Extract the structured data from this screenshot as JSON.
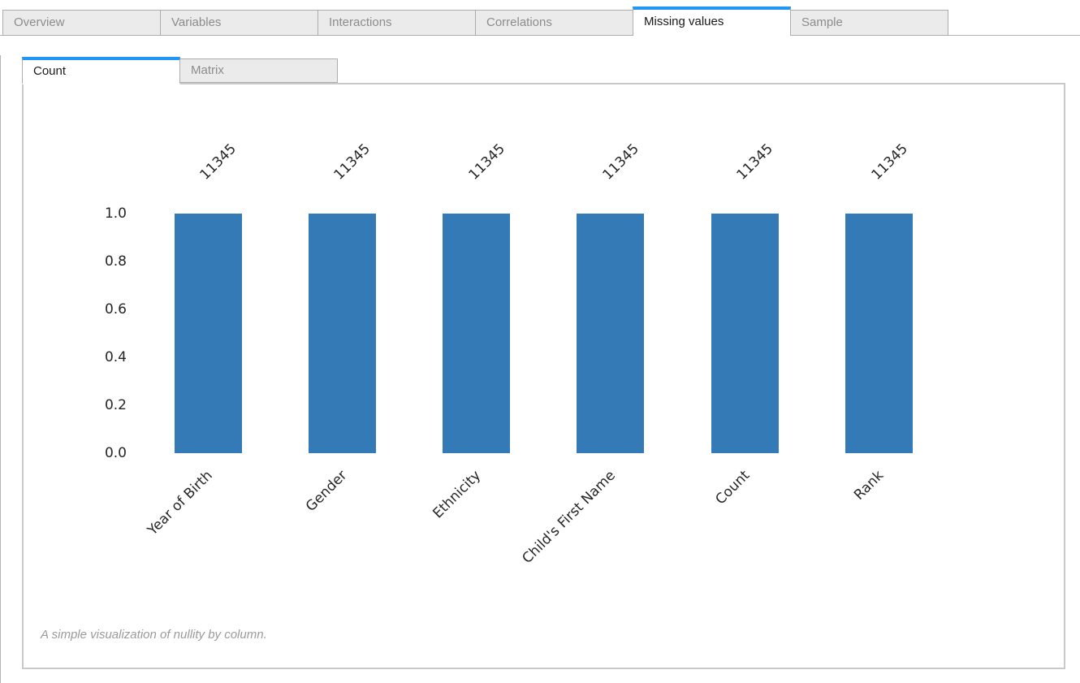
{
  "main_tabs": [
    {
      "label": "Overview",
      "active": false
    },
    {
      "label": "Variables",
      "active": false
    },
    {
      "label": "Interactions",
      "active": false
    },
    {
      "label": "Correlations",
      "active": false
    },
    {
      "label": "Missing values",
      "active": true
    },
    {
      "label": "Sample",
      "active": false
    }
  ],
  "sub_tabs": [
    {
      "label": "Count",
      "active": true
    },
    {
      "label": "Matrix",
      "active": false
    }
  ],
  "chart_data": {
    "type": "bar",
    "title": "",
    "categories": [
      "Year of Birth",
      "Gender",
      "Ethnicity",
      "Child's First Name",
      "Count",
      "Rank"
    ],
    "values": [
      1.0,
      1.0,
      1.0,
      1.0,
      1.0,
      1.0
    ],
    "bar_labels": [
      "11345",
      "11345",
      "11345",
      "11345",
      "11345",
      "11345"
    ],
    "counts": [
      11345,
      11345,
      11345,
      11345,
      11345,
      11345
    ],
    "yticks": [
      "1.0",
      "0.8",
      "0.6",
      "0.4",
      "0.2",
      "0.0"
    ],
    "ylim": [
      0.0,
      1.0
    ],
    "xlabel": "",
    "ylabel": "",
    "grid": false,
    "legend_position": null,
    "bar_color": "#337ab7"
  },
  "caption": "A simple visualization of nullity by column.",
  "colors": {
    "accent": "#2196f3",
    "bar": "#337ab7",
    "inactive_tab_bg": "#ebebeb",
    "tab_border": "#adadad"
  }
}
